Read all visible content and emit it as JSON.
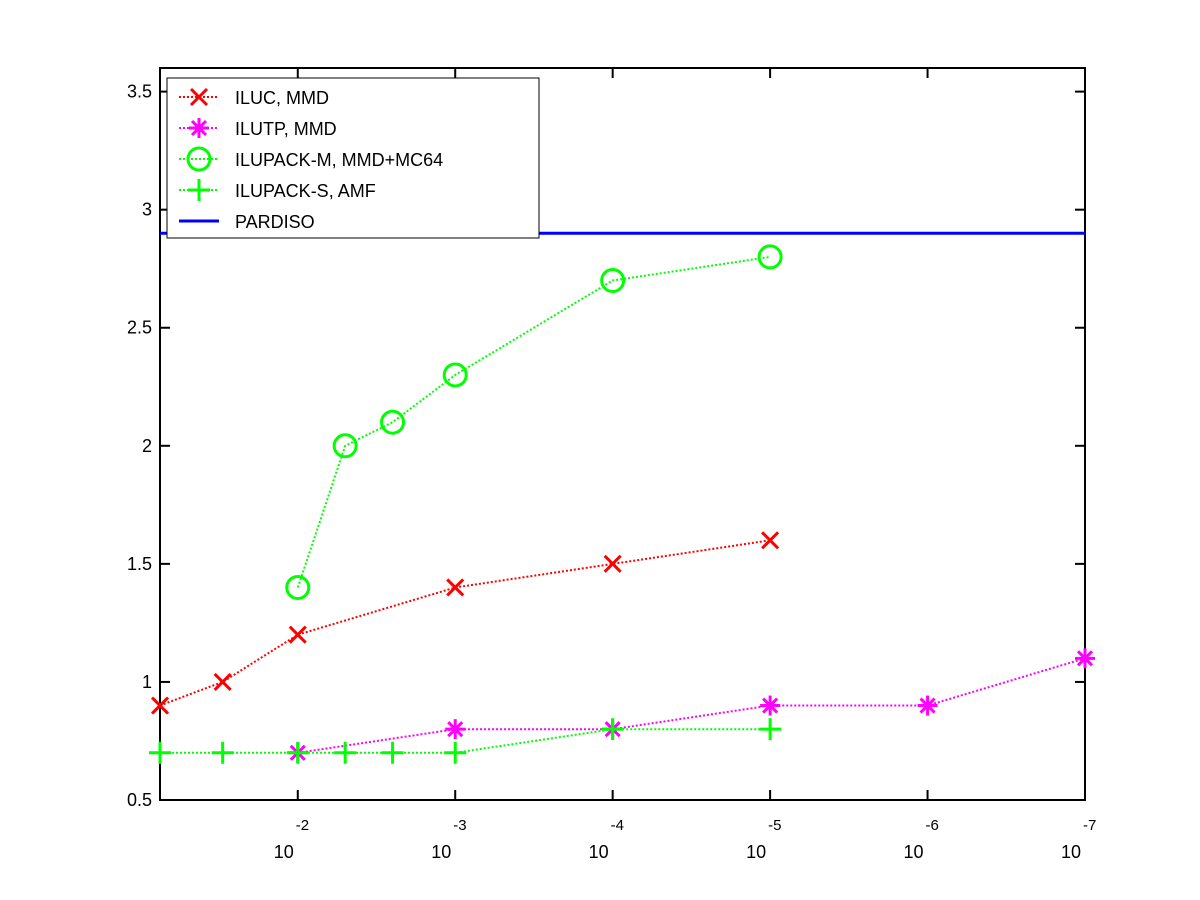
{
  "chart_data": {
    "type": "line",
    "x_scale": "log",
    "x_reversed": true,
    "xlim": [
      0.075,
      1e-07
    ],
    "ylim": [
      0.5,
      3.6
    ],
    "grid": false,
    "legend_position": "top-left",
    "x_ticks": [
      {
        "base": "10",
        "exp": "-2",
        "value": 0.01
      },
      {
        "base": "10",
        "exp": "-3",
        "value": 0.001
      },
      {
        "base": "10",
        "exp": "-4",
        "value": 0.0001
      },
      {
        "base": "10",
        "exp": "-5",
        "value": 1e-05
      },
      {
        "base": "10",
        "exp": "-6",
        "value": 1e-06
      },
      {
        "base": "10",
        "exp": "-7",
        "value": 1e-07
      }
    ],
    "y_ticks": [
      "0.5",
      "1",
      "1.5",
      "2",
      "2.5",
      "3",
      "3.5"
    ],
    "series": [
      {
        "name": "ILUC, MMD",
        "color": "#ff0000",
        "marker": "x",
        "line_style": "dotted",
        "points": [
          [
            0.075,
            0.9
          ],
          [
            0.03,
            1.0
          ],
          [
            0.01,
            1.2
          ],
          [
            0.001,
            1.4
          ],
          [
            0.0001,
            1.5
          ],
          [
            1e-05,
            1.6
          ]
        ]
      },
      {
        "name": "ILUTP, MMD",
        "color": "#ff00ff",
        "marker": "asterisk",
        "line_style": "dotted",
        "points": [
          [
            0.01,
            0.7
          ],
          [
            0.001,
            0.8
          ],
          [
            0.0001,
            0.8
          ],
          [
            1e-05,
            0.9
          ],
          [
            1e-06,
            0.9
          ],
          [
            1e-07,
            1.1
          ]
        ]
      },
      {
        "name": "ILUPACK-M, MMD+MC64",
        "color": "#00ff00",
        "marker": "circle",
        "line_style": "dotted",
        "points": [
          [
            0.01,
            1.4
          ],
          [
            0.005,
            2.0
          ],
          [
            0.0025,
            2.1
          ],
          [
            0.001,
            2.3
          ],
          [
            0.0001,
            2.7
          ],
          [
            1e-05,
            2.8
          ]
        ]
      },
      {
        "name": "ILUPACK-S, AMF",
        "color": "#00ff00",
        "marker": "plus",
        "line_style": "dotted",
        "points": [
          [
            0.075,
            0.7
          ],
          [
            0.03,
            0.7
          ],
          [
            0.01,
            0.7
          ],
          [
            0.005,
            0.7
          ],
          [
            0.0025,
            0.7
          ],
          [
            0.001,
            0.7
          ],
          [
            0.0001,
            0.8
          ],
          [
            1e-05,
            0.8
          ]
        ]
      },
      {
        "name": "PARDISO",
        "color": "#0000ff",
        "marker": "none",
        "line_style": "solid",
        "points": [
          [
            0.075,
            2.9
          ],
          [
            1e-07,
            2.9
          ]
        ]
      }
    ]
  }
}
